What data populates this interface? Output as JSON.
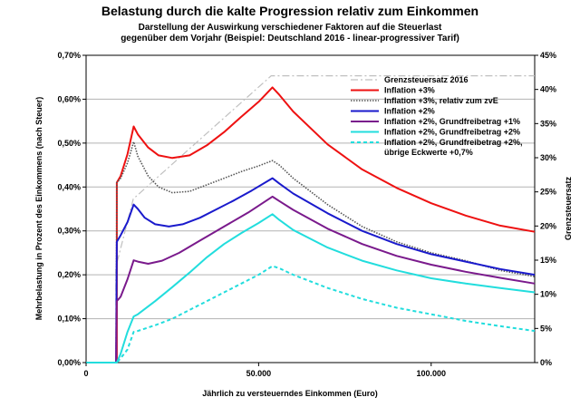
{
  "chart_data": {
    "type": "line",
    "title": "Belastung durch die kalte Progression relativ zum Einkommen",
    "subtitle_lines": [
      "Darstellung der Auswirkung verschiedener Faktoren auf die Steuerlast",
      "gegenüber dem Vorjahr (Beispiel: Deutschland 2016 - linear-progressiver Tarif)"
    ],
    "xlabel": "Jährlich zu versteuerndes Einkommen (Euro)",
    "ylabel": "Mehrbelastung in Prozent des Einkommens (nach Steuer)",
    "y2label": "Grenzsteuersatz",
    "xlim": [
      0,
      130000
    ],
    "ylim": [
      0,
      0.7
    ],
    "y2lim": [
      0,
      45
    ],
    "x_ticks": [
      0,
      50000,
      100000
    ],
    "x_tick_labels": [
      "0",
      "50.000",
      "100.000"
    ],
    "y_ticks": [
      0,
      0.1,
      0.2,
      0.3,
      0.4,
      0.5,
      0.6,
      0.7
    ],
    "y_tick_labels": [
      "0,00%",
      "0,10%",
      "0,20%",
      "0,30%",
      "0,40%",
      "0,50%",
      "0,60%",
      "0,70%"
    ],
    "y2_ticks": [
      0,
      5,
      10,
      15,
      20,
      25,
      30,
      35,
      40,
      45
    ],
    "y2_tick_labels": [
      "0%",
      "5%",
      "10%",
      "15%",
      "20%",
      "25%",
      "30%",
      "35%",
      "40%",
      "45%"
    ],
    "grid": true,
    "legend_position": "top-right",
    "series": [
      {
        "name": "Grenzsteuersatz 2016",
        "axis": "right",
        "color": "#c0c0c0",
        "style": "dashdot",
        "points": [
          [
            0,
            0
          ],
          [
            8650,
            0
          ],
          [
            8652,
            14
          ],
          [
            13670,
            23.97
          ],
          [
            53665,
            42
          ],
          [
            130000,
            42
          ]
        ]
      },
      {
        "name": "Inflation +3%",
        "axis": "left",
        "color": "#ee1111",
        "style": "solid",
        "points": [
          [
            0,
            0
          ],
          [
            8700,
            0
          ],
          [
            8900,
            0
          ],
          [
            8910,
            0.41
          ],
          [
            10000,
            0.425
          ],
          [
            12000,
            0.475
          ],
          [
            13800,
            0.538
          ],
          [
            15000,
            0.52
          ],
          [
            18000,
            0.49
          ],
          [
            21000,
            0.472
          ],
          [
            25000,
            0.466
          ],
          [
            30000,
            0.472
          ],
          [
            35000,
            0.495
          ],
          [
            40000,
            0.525
          ],
          [
            45000,
            0.56
          ],
          [
            50000,
            0.594
          ],
          [
            54000,
            0.627
          ],
          [
            56000,
            0.61
          ],
          [
            60000,
            0.572
          ],
          [
            70000,
            0.497
          ],
          [
            80000,
            0.44
          ],
          [
            90000,
            0.398
          ],
          [
            100000,
            0.363
          ],
          [
            110000,
            0.335
          ],
          [
            120000,
            0.312
          ],
          [
            130000,
            0.298
          ]
        ]
      },
      {
        "name": "Inflation +3%, relativ zum zvE",
        "axis": "left",
        "color": "#555555",
        "style": "dotted",
        "points": [
          [
            0,
            0
          ],
          [
            8700,
            0
          ],
          [
            8910,
            0.41
          ],
          [
            10000,
            0.42
          ],
          [
            12000,
            0.455
          ],
          [
            13800,
            0.503
          ],
          [
            15000,
            0.47
          ],
          [
            18000,
            0.425
          ],
          [
            21000,
            0.4
          ],
          [
            25000,
            0.387
          ],
          [
            30000,
            0.39
          ],
          [
            35000,
            0.405
          ],
          [
            40000,
            0.42
          ],
          [
            45000,
            0.435
          ],
          [
            50000,
            0.448
          ],
          [
            54000,
            0.46
          ],
          [
            56000,
            0.45
          ],
          [
            60000,
            0.42
          ],
          [
            70000,
            0.36
          ],
          [
            80000,
            0.31
          ],
          [
            90000,
            0.275
          ],
          [
            100000,
            0.25
          ],
          [
            110000,
            0.232
          ],
          [
            120000,
            0.21
          ],
          [
            130000,
            0.196
          ]
        ]
      },
      {
        "name": "Inflation +2%",
        "axis": "left",
        "color": "#1a1acc",
        "style": "solid",
        "points": [
          [
            0,
            0
          ],
          [
            8700,
            0
          ],
          [
            8910,
            0.275
          ],
          [
            10000,
            0.29
          ],
          [
            12000,
            0.32
          ],
          [
            13800,
            0.36
          ],
          [
            15000,
            0.35
          ],
          [
            17000,
            0.33
          ],
          [
            20000,
            0.315
          ],
          [
            24000,
            0.31
          ],
          [
            28000,
            0.315
          ],
          [
            33000,
            0.33
          ],
          [
            38000,
            0.35
          ],
          [
            43000,
            0.37
          ],
          [
            48000,
            0.392
          ],
          [
            54000,
            0.42
          ],
          [
            56000,
            0.408
          ],
          [
            60000,
            0.385
          ],
          [
            70000,
            0.34
          ],
          [
            80000,
            0.3
          ],
          [
            90000,
            0.27
          ],
          [
            100000,
            0.247
          ],
          [
            110000,
            0.23
          ],
          [
            120000,
            0.213
          ],
          [
            130000,
            0.2
          ]
        ]
      },
      {
        "name": "Inflation +2%, Grundfreibetrag +1%",
        "axis": "left",
        "color": "#7a1a8c",
        "style": "solid",
        "points": [
          [
            0,
            0
          ],
          [
            8700,
            0
          ],
          [
            8910,
            0.14
          ],
          [
            10000,
            0.15
          ],
          [
            12000,
            0.19
          ],
          [
            13800,
            0.233
          ],
          [
            15000,
            0.23
          ],
          [
            18000,
            0.225
          ],
          [
            22000,
            0.232
          ],
          [
            27000,
            0.25
          ],
          [
            33000,
            0.278
          ],
          [
            40000,
            0.31
          ],
          [
            47000,
            0.342
          ],
          [
            54000,
            0.378
          ],
          [
            56000,
            0.368
          ],
          [
            60000,
            0.348
          ],
          [
            70000,
            0.305
          ],
          [
            80000,
            0.27
          ],
          [
            90000,
            0.243
          ],
          [
            100000,
            0.223
          ],
          [
            110000,
            0.207
          ],
          [
            120000,
            0.193
          ],
          [
            130000,
            0.18
          ]
        ]
      },
      {
        "name": "Inflation +2%, Grundfreibetrag +2%",
        "axis": "left",
        "color": "#22dddd",
        "style": "solid",
        "points": [
          [
            0,
            0
          ],
          [
            8700,
            0
          ],
          [
            8910,
            0.0
          ],
          [
            10000,
            0.02
          ],
          [
            12000,
            0.07
          ],
          [
            13800,
            0.105
          ],
          [
            15000,
            0.11
          ],
          [
            20000,
            0.14
          ],
          [
            25000,
            0.172
          ],
          [
            30000,
            0.205
          ],
          [
            35000,
            0.24
          ],
          [
            40000,
            0.27
          ],
          [
            45000,
            0.295
          ],
          [
            50000,
            0.318
          ],
          [
            54000,
            0.338
          ],
          [
            56000,
            0.325
          ],
          [
            60000,
            0.302
          ],
          [
            70000,
            0.262
          ],
          [
            80000,
            0.232
          ],
          [
            90000,
            0.21
          ],
          [
            100000,
            0.192
          ],
          [
            110000,
            0.18
          ],
          [
            120000,
            0.17
          ],
          [
            130000,
            0.16
          ]
        ]
      },
      {
        "name": "Inflation +2%, Grundfreibetrag +2%, übrige Eckwerte +0,7%",
        "axis": "left",
        "color": "#22dddd",
        "style": "dashed",
        "points": [
          [
            0,
            0
          ],
          [
            8700,
            0
          ],
          [
            8910,
            0.0
          ],
          [
            10000,
            0.01
          ],
          [
            12000,
            0.03
          ],
          [
            13800,
            0.07
          ],
          [
            15000,
            0.072
          ],
          [
            20000,
            0.085
          ],
          [
            25000,
            0.1
          ],
          [
            30000,
            0.12
          ],
          [
            35000,
            0.14
          ],
          [
            40000,
            0.16
          ],
          [
            45000,
            0.18
          ],
          [
            50000,
            0.2
          ],
          [
            54000,
            0.22
          ],
          [
            56000,
            0.215
          ],
          [
            60000,
            0.2
          ],
          [
            70000,
            0.17
          ],
          [
            80000,
            0.145
          ],
          [
            90000,
            0.125
          ],
          [
            100000,
            0.11
          ],
          [
            110000,
            0.095
          ],
          [
            120000,
            0.083
          ],
          [
            130000,
            0.072
          ]
        ]
      }
    ],
    "legend_entries": [
      {
        "label_lines": [
          "Grenzsteuersatz 2016"
        ]
      },
      {
        "label_lines": [
          "Inflation +3%"
        ]
      },
      {
        "label_lines": [
          "Inflation +3%, relativ zum zvE"
        ]
      },
      {
        "label_lines": [
          "Inflation +2%"
        ]
      },
      {
        "label_lines": [
          "Inflation +2%, Grundfreibetrag +1%"
        ]
      },
      {
        "label_lines": [
          "Inflation +2%, Grundfreibetrag +2%"
        ]
      },
      {
        "label_lines": [
          "Inflation +2%, Grundfreibetrag +2%,",
          "übrige Eckwerte +0,7%"
        ]
      }
    ]
  }
}
